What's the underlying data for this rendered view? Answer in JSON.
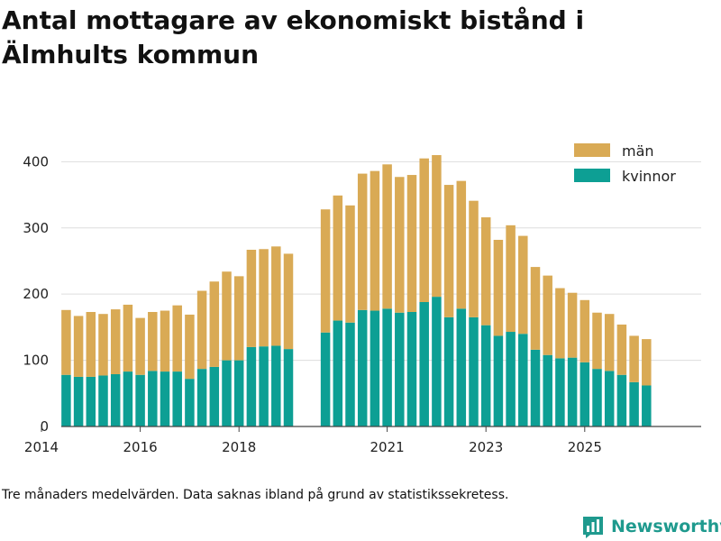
{
  "title": "Antal mottagare av ekonomiskt bistånd i Älmhults kommun",
  "footnote": "Tre månaders medelvärden. Data saknas ibland på grund av statistikssekretess.",
  "brand": {
    "name": "Newsworthy",
    "icon": "bar-chart-logo-icon"
  },
  "colors": {
    "men": "#d9aa55",
    "women": "#0d9f94",
    "grid": "#dddddd",
    "axis": "#444444",
    "brand": "#1f9a8e"
  },
  "chart_data": {
    "type": "bar",
    "stacked": true,
    "x_start": 2014,
    "x_end": 2026,
    "ylim": [
      0,
      440
    ],
    "y_ticks": [
      0,
      100,
      200,
      300,
      400
    ],
    "x_ticks": [
      2014,
      2016,
      2018,
      2021,
      2023,
      2025
    ],
    "legend": [
      {
        "key": "men",
        "label": "män"
      },
      {
        "key": "women",
        "label": "kvinnor"
      }
    ],
    "legend_position": "top-right",
    "grid": true,
    "series": [
      {
        "name": "kvinnor",
        "segments": [
          {
            "start": 2014.5,
            "values": [
              78,
              75,
              75,
              77,
              79,
              83,
              78,
              84,
              83,
              83,
              72,
              87,
              90,
              100,
              100,
              120,
              121,
              122,
              117
            ]
          },
          {
            "start": 2019.75,
            "values": [
              142,
              160,
              157,
              176,
              175,
              178,
              172,
              173,
              188,
              196,
              165,
              178,
              165,
              153,
              137,
              143,
              140,
              116,
              108,
              103,
              104,
              97,
              87,
              84,
              78,
              67,
              62
            ]
          }
        ]
      },
      {
        "name": "män",
        "segments": [
          {
            "start": 2014.5,
            "values": [
              98,
              92,
              98,
              93,
              98,
              101,
              86,
              89,
              92,
              100,
              97,
              118,
              129,
              134,
              127,
              147,
              147,
              150,
              144
            ]
          },
          {
            "start": 2019.75,
            "values": [
              186,
              189,
              177,
              206,
              211,
              218,
              205,
              207,
              217,
              214,
              200,
              193,
              176,
              163,
              145,
              161,
              148,
              125,
              120,
              106,
              98,
              94,
              85,
              86,
              76,
              70,
              70
            ]
          }
        ]
      }
    ]
  }
}
